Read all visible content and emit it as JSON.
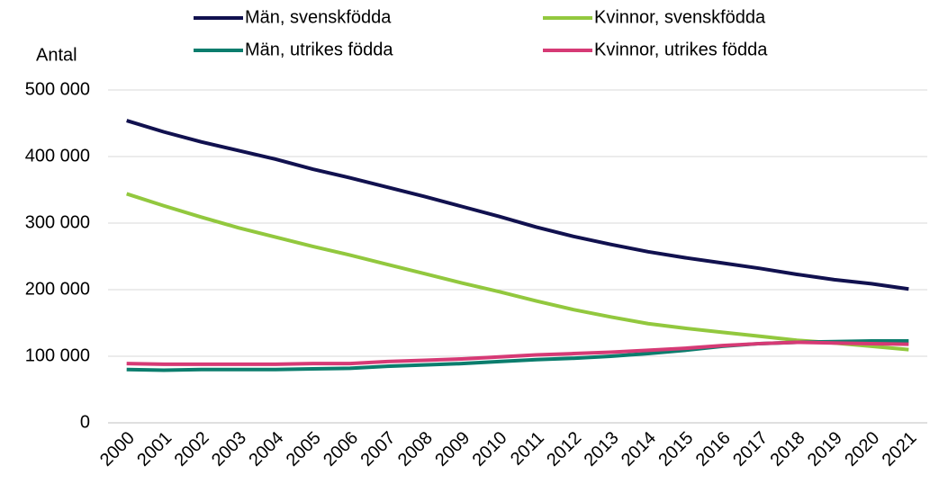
{
  "chart_data": {
    "type": "line",
    "y_label": "Antal",
    "categories": [
      "2000",
      "2001",
      "2002",
      "2003",
      "2004",
      "2005",
      "2006",
      "2007",
      "2008",
      "2009",
      "2010",
      "2011",
      "2012",
      "2013",
      "2014",
      "2015",
      "2016",
      "2017",
      "2018",
      "2019",
      "2020",
      "2021"
    ],
    "series": [
      {
        "name": "Män, svenskfödda",
        "color": "#11114f",
        "values": [
          454000,
          437000,
          422000,
          409000,
          396000,
          381000,
          368000,
          354000,
          340000,
          325000,
          310000,
          294000,
          280000,
          268000,
          257000,
          248000,
          240000,
          232000,
          223000,
          215000,
          209000,
          201000
        ]
      },
      {
        "name": "Kvinnor, svenskfödda",
        "color": "#92c83e",
        "values": [
          344000,
          326000,
          309000,
          293000,
          279000,
          265000,
          252000,
          238000,
          224000,
          210000,
          197000,
          183000,
          170000,
          159000,
          149000,
          142000,
          136000,
          130000,
          124000,
          120000,
          115000,
          110000
        ]
      },
      {
        "name": "Män, utrikes födda",
        "color": "#0b7d6d",
        "values": [
          80000,
          79000,
          80000,
          80000,
          80000,
          81000,
          82000,
          85000,
          87000,
          89000,
          92000,
          95000,
          97000,
          100000,
          104000,
          109000,
          115000,
          119000,
          121000,
          122000,
          123000,
          123000
        ]
      },
      {
        "name": "Kvinnor, utrikes födda",
        "color": "#d63a75",
        "values": [
          89000,
          88000,
          88000,
          88000,
          88000,
          89000,
          89000,
          92000,
          94000,
          96000,
          99000,
          102000,
          104000,
          106000,
          109000,
          112000,
          116000,
          119000,
          121000,
          120000,
          119000,
          118000
        ]
      }
    ],
    "ylim": [
      0,
      500000
    ],
    "yticks": [
      0,
      {
        "value": 100000,
        "label": "100 000"
      },
      {
        "value": 200000,
        "label": "200 000"
      },
      {
        "value": 300000,
        "label": "300 000"
      },
      {
        "value": 400000,
        "label": "400 000"
      },
      {
        "value": 500000,
        "label": "500 000"
      }
    ],
    "grid": true
  }
}
